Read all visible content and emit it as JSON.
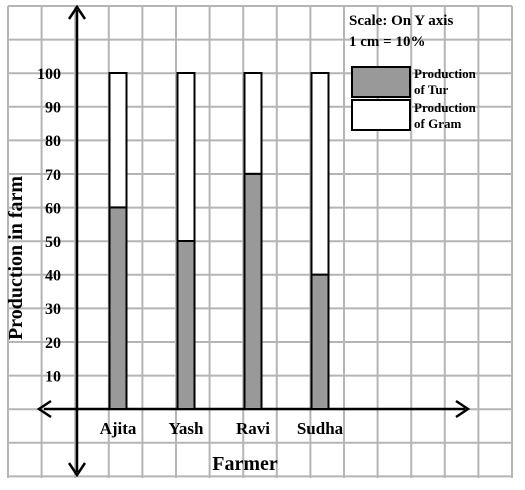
{
  "chart_data": {
    "type": "bar",
    "stacked": true,
    "categories": [
      "Ajita",
      "Yash",
      "Ravi",
      "Sudha"
    ],
    "series": [
      {
        "name": "Production of Tur",
        "values": [
          60,
          50,
          70,
          40
        ],
        "color": "#999999"
      },
      {
        "name": "Production of Gram",
        "values": [
          40,
          50,
          30,
          60
        ],
        "color": "#ffffff"
      }
    ],
    "legend_lines": [
      [
        "Production",
        "of Tur"
      ],
      [
        "Production",
        "of Gram"
      ]
    ],
    "yticks": [
      10,
      20,
      30,
      40,
      50,
      60,
      70,
      80,
      90,
      100
    ],
    "ylim": [
      0,
      100
    ],
    "xlabel": "Farmer",
    "ylabel": "Production in farm",
    "scale_note": [
      "Scale: On Y axis",
      "1 cm = 10%"
    ],
    "grid": true,
    "legend_position": "top-right"
  }
}
